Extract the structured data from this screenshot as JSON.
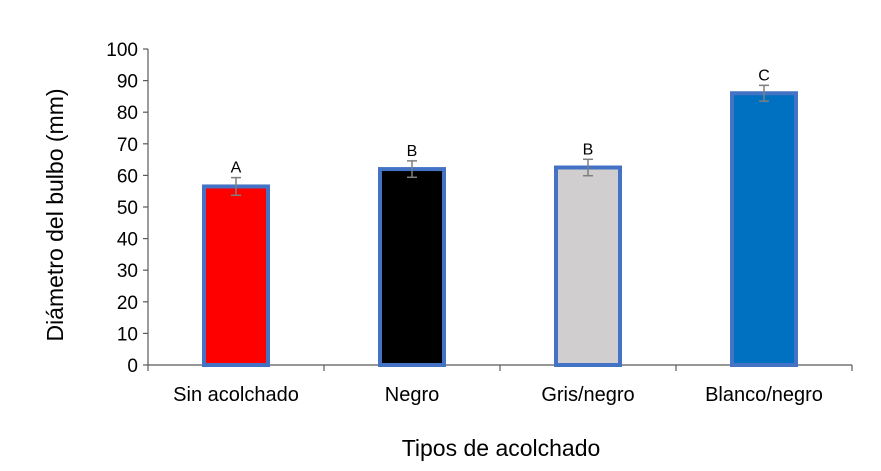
{
  "chart_data": {
    "type": "bar",
    "categories": [
      "Sin acolchado",
      "Negro",
      "Gris/negro",
      "Blanco/negro"
    ],
    "values": [
      56.5,
      62,
      62.5,
      86
    ],
    "errors": [
      2.8,
      2.6,
      2.6,
      2.5
    ],
    "significance_labels": [
      "A",
      "B",
      "B",
      "C"
    ],
    "bar_colors": [
      "#ff0000",
      "#000000",
      "#d0cece",
      "#0070c0"
    ],
    "bar_border_color": "#4472c4",
    "error_bar_color": "#7f7f7f",
    "xlabel": "Tipos de acolchado",
    "ylabel": "Diámetro del bulbo (mm)",
    "ylim": [
      0,
      100
    ],
    "yticks": [
      0,
      10,
      20,
      30,
      40,
      50,
      60,
      70,
      80,
      90,
      100
    ],
    "grid": false,
    "legend": "none"
  }
}
